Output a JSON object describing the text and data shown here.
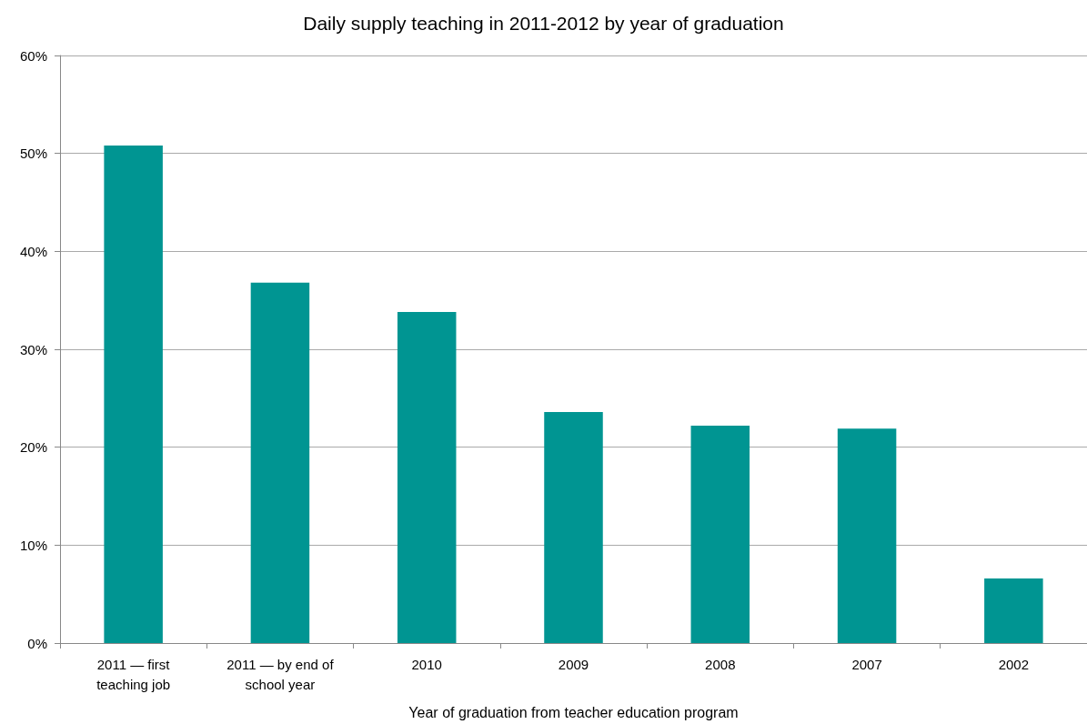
{
  "chart_data": {
    "type": "bar",
    "title": "Daily supply teaching in 2011-2012 by year of graduation",
    "xlabel": "Year of graduation from teacher education program",
    "categories": [
      "2011 — first\nteaching job",
      "2011 — by end of\nschool year",
      "2010",
      "2009",
      "2008",
      "2007",
      "2002"
    ],
    "values": [
      50.8,
      36.8,
      33.8,
      23.6,
      22.2,
      21.9,
      6.6
    ],
    "color": "#009592",
    "ylim": [
      0,
      60
    ],
    "yticks": [
      {
        "value": 0,
        "label": "0%"
      },
      {
        "value": 10,
        "label": "10%"
      },
      {
        "value": 20,
        "label": "20%"
      },
      {
        "value": 30,
        "label": "30%"
      },
      {
        "value": 40,
        "label": "40%"
      },
      {
        "value": 50,
        "label": "50%"
      },
      {
        "value": 60,
        "label": "60%"
      }
    ],
    "grid": "y"
  }
}
